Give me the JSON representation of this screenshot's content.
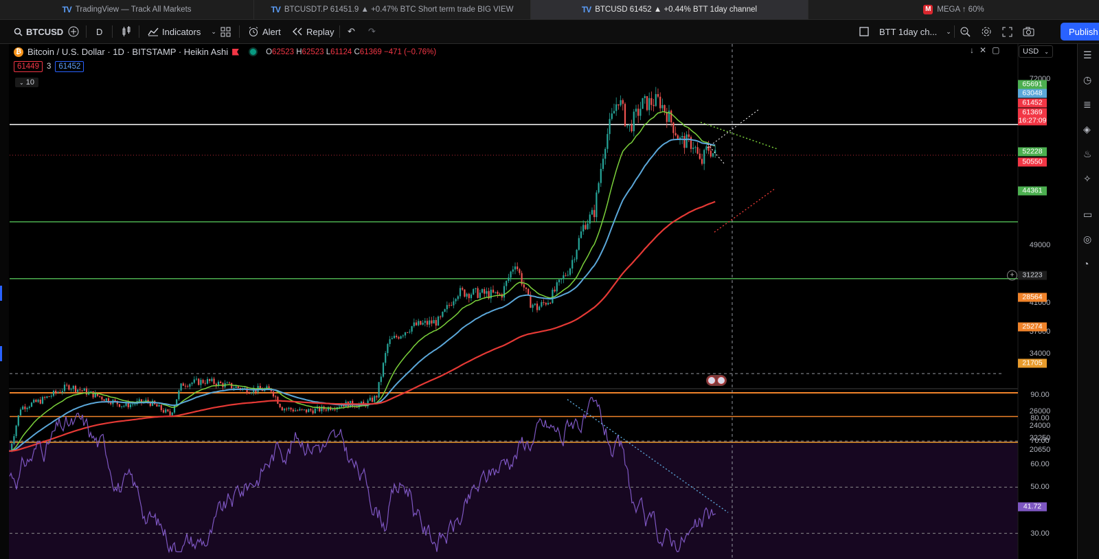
{
  "tabs": [
    {
      "label": "TradingView — Track All Markets",
      "logo": "TV",
      "active": false
    },
    {
      "label": "BTCUSDT.P 61451.9 ▲ +0.47% BTC Short term trade BIG VIEW",
      "logo": "TV",
      "active": false
    },
    {
      "label": "BTCUSD 61452 ▲ +0.44% BTT 1day channel",
      "logo": "TV",
      "active": true
    },
    {
      "label": "MEGA ↑ 60%",
      "logo": "M",
      "active": false
    }
  ],
  "toolbar": {
    "symbol": "BTCUSD",
    "interval": "D",
    "indicators_label": "Indicators",
    "alert_label": "Alert",
    "replay_label": "Replay",
    "layout_name": "BTT 1day ch...",
    "publish_label": "Publish"
  },
  "legend": {
    "title": "Bitcoin / U.S. Dollar · 1D · BITSTAMP · Heikin Ashi",
    "open_label": "O",
    "open": "62523",
    "high_label": "H",
    "high": "62523",
    "low_label": "L",
    "low": "61124",
    "close_label": "C",
    "close": "61369",
    "change": "−471 (−0.76%)",
    "sell_price": "61449",
    "spread": "3",
    "buy_price": "61452",
    "collapse_count": "10"
  },
  "currency": "USD",
  "price_axis": {
    "ticks": [
      "72000",
      "49000",
      "41000",
      "37000",
      "34000",
      "26000",
      "24000",
      "22250",
      "20650"
    ],
    "badges": [
      {
        "value": "65691",
        "color": "#4caf50"
      },
      {
        "value": "63048",
        "color": "#5ba7d9"
      },
      {
        "value": "61452",
        "color": "#f23645"
      },
      {
        "value": "61369",
        "color": "#f23645"
      },
      {
        "value": "16:27:09",
        "color": "#f23645"
      },
      {
        "value": "52228",
        "color": "#4caf50"
      },
      {
        "value": "50550",
        "color": "#f23645"
      },
      {
        "value": "44361",
        "color": "#4caf50"
      },
      {
        "value": "31223",
        "color": "#1e1e1e"
      },
      {
        "value": "28564",
        "color": "#f0832a"
      },
      {
        "value": "25274",
        "color": "#f0832a"
      },
      {
        "value": "21705",
        "color": "#e89b2c"
      }
    ]
  },
  "rsi_axis": {
    "ticks": [
      "90.00",
      "80.00",
      "70.00",
      "60.00",
      "50.00",
      "30.00"
    ],
    "current": "41.72"
  },
  "colors": {
    "bull": "#26a69a",
    "bear": "#ef5350",
    "ema_fast": "#7bd13b",
    "ema_mid": "#5ba7d9",
    "ema_slow": "#e53935",
    "support_green": "#4caf50",
    "support_orange": "#f0832a",
    "rsi_line": "#7e57c2",
    "accent": "#2962ff"
  }
}
